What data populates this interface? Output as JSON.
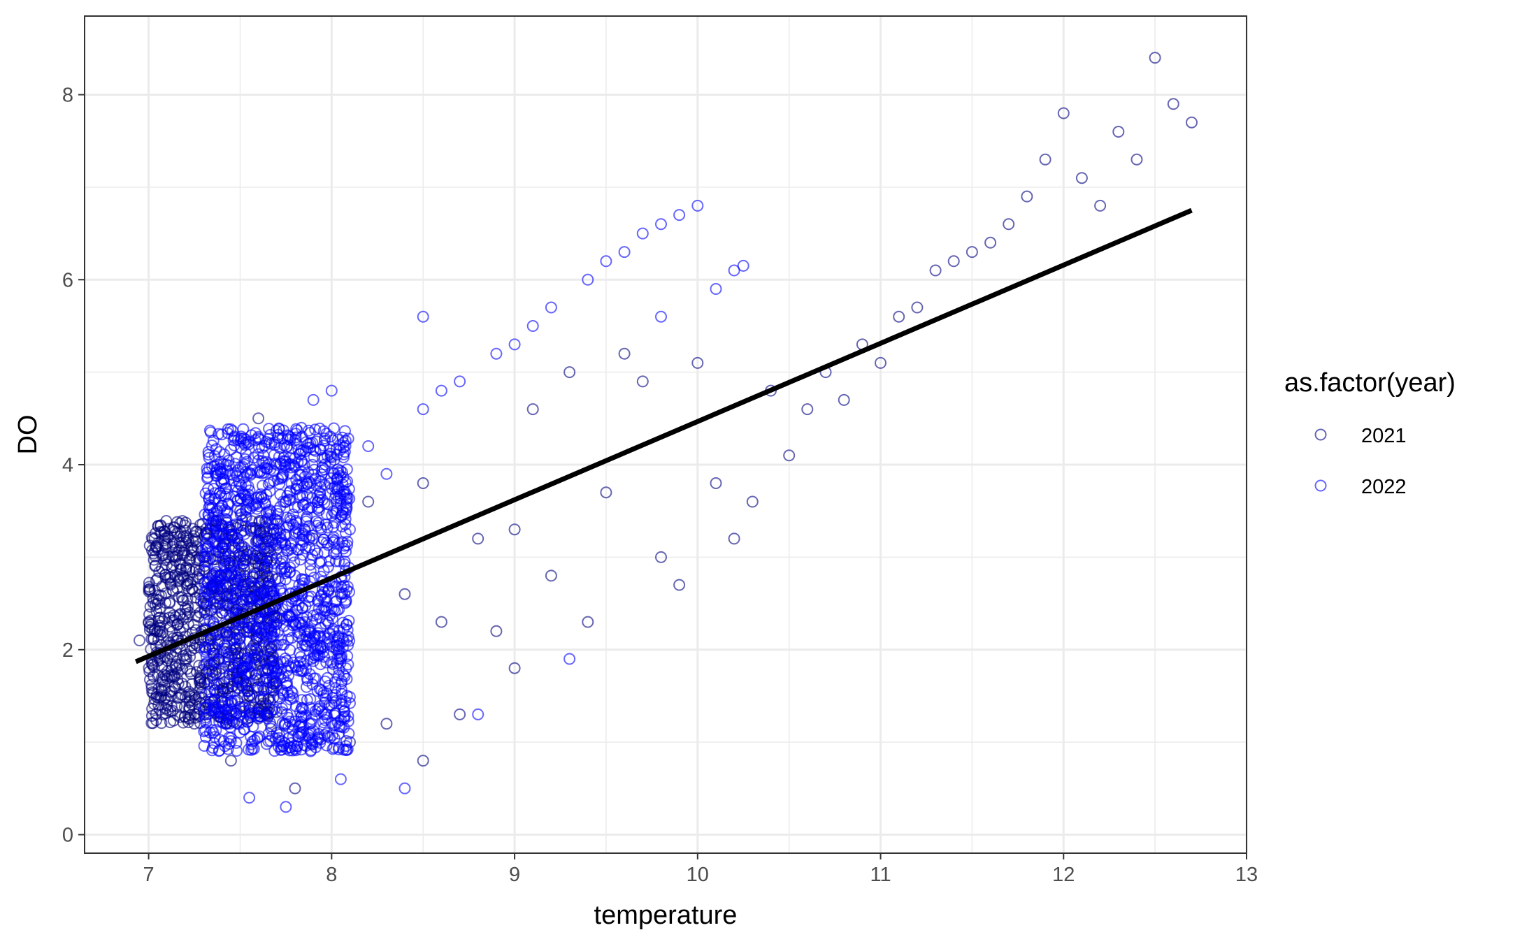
{
  "chart_data": {
    "type": "scatter",
    "title": "",
    "xlabel": "temperature",
    "ylabel": "DO",
    "xlim": [
      6.65,
      13.0
    ],
    "ylim": [
      -0.2,
      8.85
    ],
    "x_ticks": [
      "7",
      "8",
      "9",
      "10",
      "11",
      "12",
      "13"
    ],
    "x_tick_values": [
      7,
      8,
      9,
      10,
      11,
      12,
      13
    ],
    "y_ticks": [
      "0",
      "2",
      "4",
      "6",
      "8"
    ],
    "y_tick_values": [
      0,
      2,
      4,
      6,
      8
    ],
    "grid": true,
    "legend": {
      "title": "as.factor(year)",
      "position": "right",
      "entries": [
        "2021",
        "2022"
      ]
    },
    "series": [
      {
        "name": "2021",
        "color": "#000080",
        "marker": "open-circle",
        "points": [
          [
            6.95,
            2.1
          ],
          [
            7.0,
            2.3
          ],
          [
            7.05,
            2.2
          ],
          [
            7.1,
            1.4
          ],
          [
            7.2,
            1.6
          ],
          [
            7.25,
            1.2
          ],
          [
            7.3,
            2.5
          ],
          [
            7.35,
            2.0
          ],
          [
            7.4,
            1.8
          ],
          [
            7.45,
            0.8
          ],
          [
            7.5,
            3.5
          ],
          [
            7.55,
            1.5
          ],
          [
            7.6,
            4.5
          ],
          [
            7.65,
            2.8
          ],
          [
            7.7,
            1.1
          ],
          [
            7.75,
            3.6
          ],
          [
            7.8,
            0.5
          ],
          [
            7.85,
            2.2
          ],
          [
            7.9,
            3.2
          ],
          [
            8.0,
            1.4
          ],
          [
            8.05,
            2.6
          ],
          [
            8.1,
            1.0
          ],
          [
            8.2,
            3.6
          ],
          [
            8.3,
            1.2
          ],
          [
            8.4,
            2.6
          ],
          [
            8.5,
            0.8
          ],
          [
            8.5,
            3.8
          ],
          [
            8.6,
            2.3
          ],
          [
            8.7,
            1.3
          ],
          [
            8.8,
            3.2
          ],
          [
            8.9,
            2.2
          ],
          [
            9.0,
            1.8
          ],
          [
            9.0,
            3.3
          ],
          [
            9.1,
            4.6
          ],
          [
            9.2,
            2.8
          ],
          [
            9.3,
            5.0
          ],
          [
            9.4,
            2.3
          ],
          [
            9.5,
            3.7
          ],
          [
            9.6,
            5.2
          ],
          [
            9.7,
            4.9
          ],
          [
            9.8,
            3.0
          ],
          [
            9.9,
            2.7
          ],
          [
            10.0,
            5.1
          ],
          [
            10.1,
            3.8
          ],
          [
            10.2,
            3.2
          ],
          [
            10.3,
            3.6
          ],
          [
            10.4,
            4.8
          ],
          [
            10.5,
            4.1
          ],
          [
            10.6,
            4.6
          ],
          [
            10.7,
            5.0
          ],
          [
            10.8,
            4.7
          ],
          [
            10.9,
            5.3
          ],
          [
            11.0,
            5.1
          ],
          [
            11.1,
            5.6
          ],
          [
            11.2,
            5.7
          ],
          [
            11.3,
            6.1
          ],
          [
            11.4,
            6.2
          ],
          [
            11.5,
            6.3
          ],
          [
            11.6,
            6.4
          ],
          [
            11.7,
            6.6
          ],
          [
            11.8,
            6.9
          ],
          [
            11.9,
            7.3
          ],
          [
            12.0,
            7.8
          ],
          [
            12.1,
            7.1
          ],
          [
            12.2,
            6.8
          ],
          [
            12.3,
            7.6
          ],
          [
            12.4,
            7.3
          ],
          [
            12.5,
            8.4
          ],
          [
            12.6,
            7.9
          ],
          [
            12.7,
            7.7
          ]
        ]
      },
      {
        "name": "2022",
        "color": "#0000ff",
        "marker": "open-circle",
        "points": [
          [
            7.3,
            3.0
          ],
          [
            7.4,
            3.8
          ],
          [
            7.5,
            2.5
          ],
          [
            7.55,
            0.4
          ],
          [
            7.6,
            4.3
          ],
          [
            7.65,
            1.8
          ],
          [
            7.7,
            3.5
          ],
          [
            7.75,
            0.3
          ],
          [
            7.8,
            2.8
          ],
          [
            7.85,
            4.0
          ],
          [
            7.9,
            4.7
          ],
          [
            8.0,
            4.8
          ],
          [
            8.05,
            0.6
          ],
          [
            8.1,
            3.3
          ],
          [
            8.2,
            4.2
          ],
          [
            8.3,
            3.9
          ],
          [
            8.4,
            0.5
          ],
          [
            8.5,
            4.6
          ],
          [
            8.5,
            5.6
          ],
          [
            8.6,
            4.8
          ],
          [
            8.7,
            4.9
          ],
          [
            8.8,
            1.3
          ],
          [
            8.9,
            5.2
          ],
          [
            9.0,
            5.3
          ],
          [
            9.1,
            5.5
          ],
          [
            9.2,
            5.7
          ],
          [
            9.3,
            1.9
          ],
          [
            9.4,
            6.0
          ],
          [
            9.5,
            6.2
          ],
          [
            9.6,
            6.3
          ],
          [
            9.7,
            6.5
          ],
          [
            9.8,
            6.6
          ],
          [
            9.9,
            6.7
          ],
          [
            10.0,
            6.8
          ],
          [
            10.1,
            5.9
          ],
          [
            10.2,
            6.1
          ],
          [
            10.25,
            6.15
          ],
          [
            9.8,
            5.6
          ]
        ]
      }
    ],
    "dense_clusters": [
      {
        "series": "2022",
        "x_range": [
          7.3,
          8.1
        ],
        "y_range": [
          0.9,
          4.4
        ],
        "count": 1500
      },
      {
        "series": "2021",
        "x_range": [
          7.0,
          7.7
        ],
        "y_range": [
          1.2,
          3.4
        ],
        "count": 900
      }
    ],
    "trend_line": {
      "color": "#000000",
      "from": [
        6.93,
        1.87
      ],
      "to": [
        12.7,
        6.75
      ]
    }
  }
}
